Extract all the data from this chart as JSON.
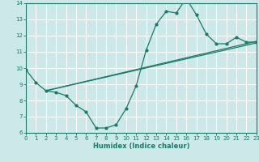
{
  "xlabel": "Humidex (Indice chaleur)",
  "bg_color": "#cce8e8",
  "grid_color": "#ffffff",
  "line_color": "#1a7a6a",
  "xlim": [
    0,
    23
  ],
  "ylim": [
    6,
    14
  ],
  "xticks": [
    0,
    1,
    2,
    3,
    4,
    5,
    6,
    7,
    8,
    9,
    10,
    11,
    12,
    13,
    14,
    15,
    16,
    17,
    18,
    19,
    20,
    21,
    22,
    23
  ],
  "yticks": [
    6,
    7,
    8,
    9,
    10,
    11,
    12,
    13,
    14
  ],
  "curve1_x": [
    0,
    1,
    2,
    3,
    4,
    5,
    6,
    7,
    8,
    9,
    10,
    11,
    12,
    13,
    14,
    15,
    16,
    17,
    18,
    19,
    20,
    21,
    22,
    23
  ],
  "curve1_y": [
    9.9,
    9.1,
    8.6,
    8.5,
    8.3,
    7.7,
    7.3,
    6.3,
    6.3,
    6.5,
    7.5,
    8.9,
    11.1,
    12.7,
    13.5,
    13.4,
    14.3,
    13.3,
    12.1,
    11.5,
    11.5,
    11.9,
    11.6,
    11.6
  ],
  "line2_x": [
    2,
    23
  ],
  "line2_y": [
    8.6,
    11.55
  ],
  "line3_x": [
    2,
    23
  ],
  "line3_y": [
    8.6,
    11.65
  ],
  "lw": 0.9,
  "ms": 2.0
}
